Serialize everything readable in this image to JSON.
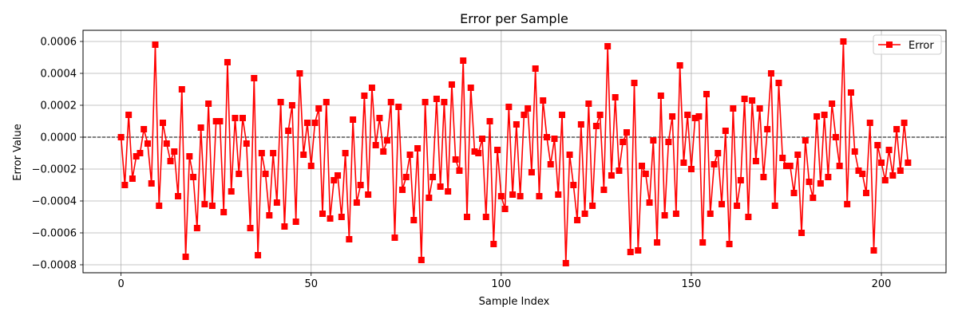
{
  "chart_data": {
    "type": "line",
    "title": "Error per Sample",
    "xlabel": "Sample Index",
    "ylabel": "Error Value",
    "xlim": [
      -10,
      217
    ],
    "ylim": [
      -0.00085,
      0.00067
    ],
    "x_ticks": [
      0,
      50,
      100,
      150,
      200
    ],
    "x_tick_labels": [
      "0",
      "50",
      "100",
      "150",
      "200"
    ],
    "y_ticks": [
      -0.0008,
      -0.0006,
      -0.0004,
      -0.0002,
      0.0,
      0.0002,
      0.0004,
      0.0006
    ],
    "y_tick_labels": [
      "−0.0008",
      "−0.0006",
      "−0.0004",
      "−0.0002",
      "0.0000",
      "0.0002",
      "0.0004",
      "0.0006"
    ],
    "grid": true,
    "reference_line": {
      "y": 0,
      "style": "dashed",
      "color": "#000000"
    },
    "legend": {
      "position": "top-right"
    },
    "series": [
      {
        "name": "Error",
        "color": "#ff0000",
        "marker": "square",
        "x": [
          0,
          1,
          2,
          3,
          4,
          5,
          6,
          7,
          8,
          9,
          10,
          11,
          12,
          13,
          14,
          15,
          16,
          17,
          18,
          19,
          20,
          21,
          22,
          23,
          24,
          25,
          26,
          27,
          28,
          29,
          30,
          31,
          32,
          33,
          34,
          35,
          36,
          37,
          38,
          39,
          40,
          41,
          42,
          43,
          44,
          45,
          46,
          47,
          48,
          49,
          50,
          51,
          52,
          53,
          54,
          55,
          56,
          57,
          58,
          59,
          60,
          61,
          62,
          63,
          64,
          65,
          66,
          67,
          68,
          69,
          70,
          71,
          72,
          73,
          74,
          75,
          76,
          77,
          78,
          79,
          80,
          81,
          82,
          83,
          84,
          85,
          86,
          87,
          88,
          89,
          90,
          91,
          92,
          93,
          94,
          95,
          96,
          97,
          98,
          99,
          100,
          101,
          102,
          103,
          104,
          105,
          106,
          107,
          108,
          109,
          110,
          111,
          112,
          113,
          114,
          115,
          116,
          117,
          118,
          119,
          120,
          121,
          122,
          123,
          124,
          125,
          126,
          127,
          128,
          129,
          130,
          131,
          132,
          133,
          134,
          135,
          136,
          137,
          138,
          139,
          140,
          141,
          142,
          143,
          144,
          145,
          146,
          147,
          148,
          149,
          150,
          151,
          152,
          153,
          154,
          155,
          156,
          157,
          158,
          159,
          160,
          161,
          162,
          163,
          164,
          165,
          166,
          167,
          168,
          169,
          170,
          171,
          172,
          173,
          174,
          175,
          176,
          177,
          178,
          179,
          180,
          181,
          182,
          183,
          184,
          185,
          186,
          187,
          188,
          189,
          190,
          191,
          192,
          193,
          194,
          195,
          196,
          197,
          198,
          199,
          200,
          201,
          202,
          203,
          204,
          205,
          206,
          207
        ],
        "values": [
          0.0,
          -0.0003,
          0.00014,
          -0.00026,
          -0.00012,
          -0.0001,
          5e-05,
          -4e-05,
          -0.00029,
          0.00058,
          -0.00043,
          9e-05,
          -4e-05,
          -0.00015,
          -9e-05,
          -0.00037,
          0.0003,
          -0.00075,
          -0.00012,
          -0.00025,
          -0.00057,
          6e-05,
          -0.00042,
          0.00021,
          -0.00043,
          0.0001,
          0.0001,
          -0.00047,
          0.00047,
          -0.00034,
          0.00012,
          -0.00023,
          0.00012,
          -4e-05,
          -0.00057,
          0.00037,
          -0.00074,
          -0.0001,
          -0.00023,
          -0.00049,
          -0.0001,
          -0.00041,
          0.00022,
          -0.00056,
          4e-05,
          0.0002,
          -0.00053,
          0.0004,
          -0.00011,
          9e-05,
          -0.00018,
          9e-05,
          0.00018,
          -0.00048,
          0.00022,
          -0.00051,
          -0.00027,
          -0.00024,
          -0.0005,
          -0.0001,
          -0.00064,
          0.00011,
          -0.00041,
          -0.0003,
          0.00026,
          -0.00036,
          0.00031,
          -5e-05,
          0.00012,
          -9e-05,
          -2e-05,
          0.00022,
          -0.00063,
          0.00019,
          -0.00033,
          -0.00025,
          -0.00011,
          -0.00052,
          -7e-05,
          -0.00077,
          0.00022,
          -0.00038,
          -0.00025,
          0.00024,
          -0.00031,
          0.00022,
          -0.00034,
          0.00033,
          -0.00014,
          -0.00021,
          0.00048,
          -0.0005,
          0.00031,
          -9e-05,
          -0.0001,
          -1e-05,
          -0.0005,
          0.0001,
          -0.00067,
          -8e-05,
          -0.00037,
          -0.00045,
          0.00019,
          -0.00036,
          8e-05,
          -0.00037,
          0.00014,
          0.00018,
          -0.00022,
          0.00043,
          -0.00037,
          0.00023,
          0.0,
          -0.00017,
          -1e-05,
          -0.00036,
          0.00014,
          -0.00079,
          -0.00011,
          -0.0003,
          -0.00052,
          8e-05,
          -0.00048,
          0.00021,
          -0.00043,
          7e-05,
          0.00014,
          -0.00033,
          0.00057,
          -0.00024,
          0.00025,
          -0.00021,
          -3e-05,
          3e-05,
          -0.00072,
          0.00034,
          -0.00071,
          -0.00018,
          -0.00023,
          -0.00041,
          -2e-05,
          -0.00066,
          0.00026,
          -0.00049,
          -3e-05,
          0.00013,
          -0.00048,
          0.00045,
          -0.00016,
          0.00014,
          -0.0002,
          0.00012,
          0.00013,
          -0.00066,
          0.00027,
          -0.00048,
          -0.00017,
          -0.0001,
          -0.00042,
          4e-05,
          -0.00067,
          0.00018,
          -0.00043,
          -0.00027,
          0.00024,
          -0.0005,
          0.00023,
          -0.00015,
          0.00018,
          -0.00025,
          5e-05,
          0.0004,
          -0.00043,
          0.00034,
          -0.00013,
          -0.00018,
          -0.00018,
          -0.00035,
          -0.00011,
          -0.0006,
          -2e-05,
          -0.00028,
          -0.00038,
          0.00013,
          -0.00029,
          0.00014,
          -0.00025,
          0.00021,
          0.0,
          -0.00018,
          0.0006,
          -0.00042,
          0.00028,
          -9e-05,
          -0.00021,
          -0.00023,
          -0.00035,
          9e-05,
          -0.00071,
          -5e-05,
          -0.00016,
          -0.00027,
          -8e-05,
          -0.00024,
          5e-05,
          -0.00021,
          9e-05,
          -0.00016
        ]
      }
    ]
  }
}
